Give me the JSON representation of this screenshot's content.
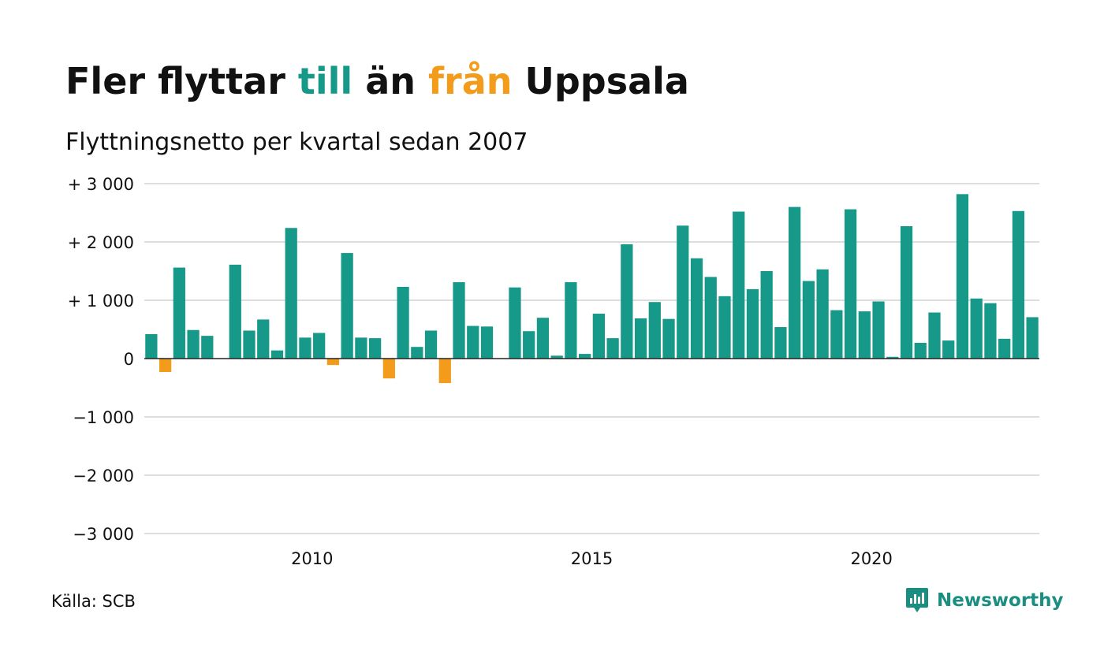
{
  "title": {
    "part1": "Fler flyttar ",
    "highlight_to": "till",
    "part2": " än ",
    "highlight_from": "från",
    "part3": " Uppsala"
  },
  "subtitle": "Flyttningsnetto per kvartal sedan 2007",
  "source": "Källa: SCB",
  "brand": "Newsworthy",
  "colors": {
    "positive": "#17998a",
    "negative": "#f39c1b",
    "grid": "#dddddd",
    "axis": "#222222"
  },
  "chart_data": {
    "type": "bar",
    "x_start": "2007 Q1",
    "y_tick_labels": [
      "+ 3 000",
      "+ 2 000",
      "+ 1 000",
      "0",
      "−1 000",
      "−2 000",
      "−3 000"
    ],
    "y_ticks": [
      3000,
      2000,
      1000,
      0,
      -1000,
      -2000,
      -3000
    ],
    "ylim": [
      -3000,
      3000
    ],
    "x_tick_labels": [
      "2010",
      "2015",
      "2020"
    ],
    "grid": true,
    "legend": "none",
    "values": [
      420,
      -230,
      1560,
      490,
      390,
      0,
      1610,
      480,
      670,
      140,
      2240,
      360,
      440,
      -110,
      1810,
      360,
      350,
      -340,
      1230,
      200,
      480,
      -420,
      1310,
      560,
      550,
      0,
      1220,
      470,
      700,
      50,
      1310,
      80,
      770,
      350,
      1960,
      690,
      970,
      680,
      2280,
      1720,
      1400,
      1070,
      2520,
      1190,
      1500,
      540,
      2600,
      1330,
      1530,
      830,
      2560,
      810,
      980,
      30,
      2270,
      270,
      790,
      310,
      2820,
      1030,
      950,
      340,
      2530,
      710
    ]
  }
}
